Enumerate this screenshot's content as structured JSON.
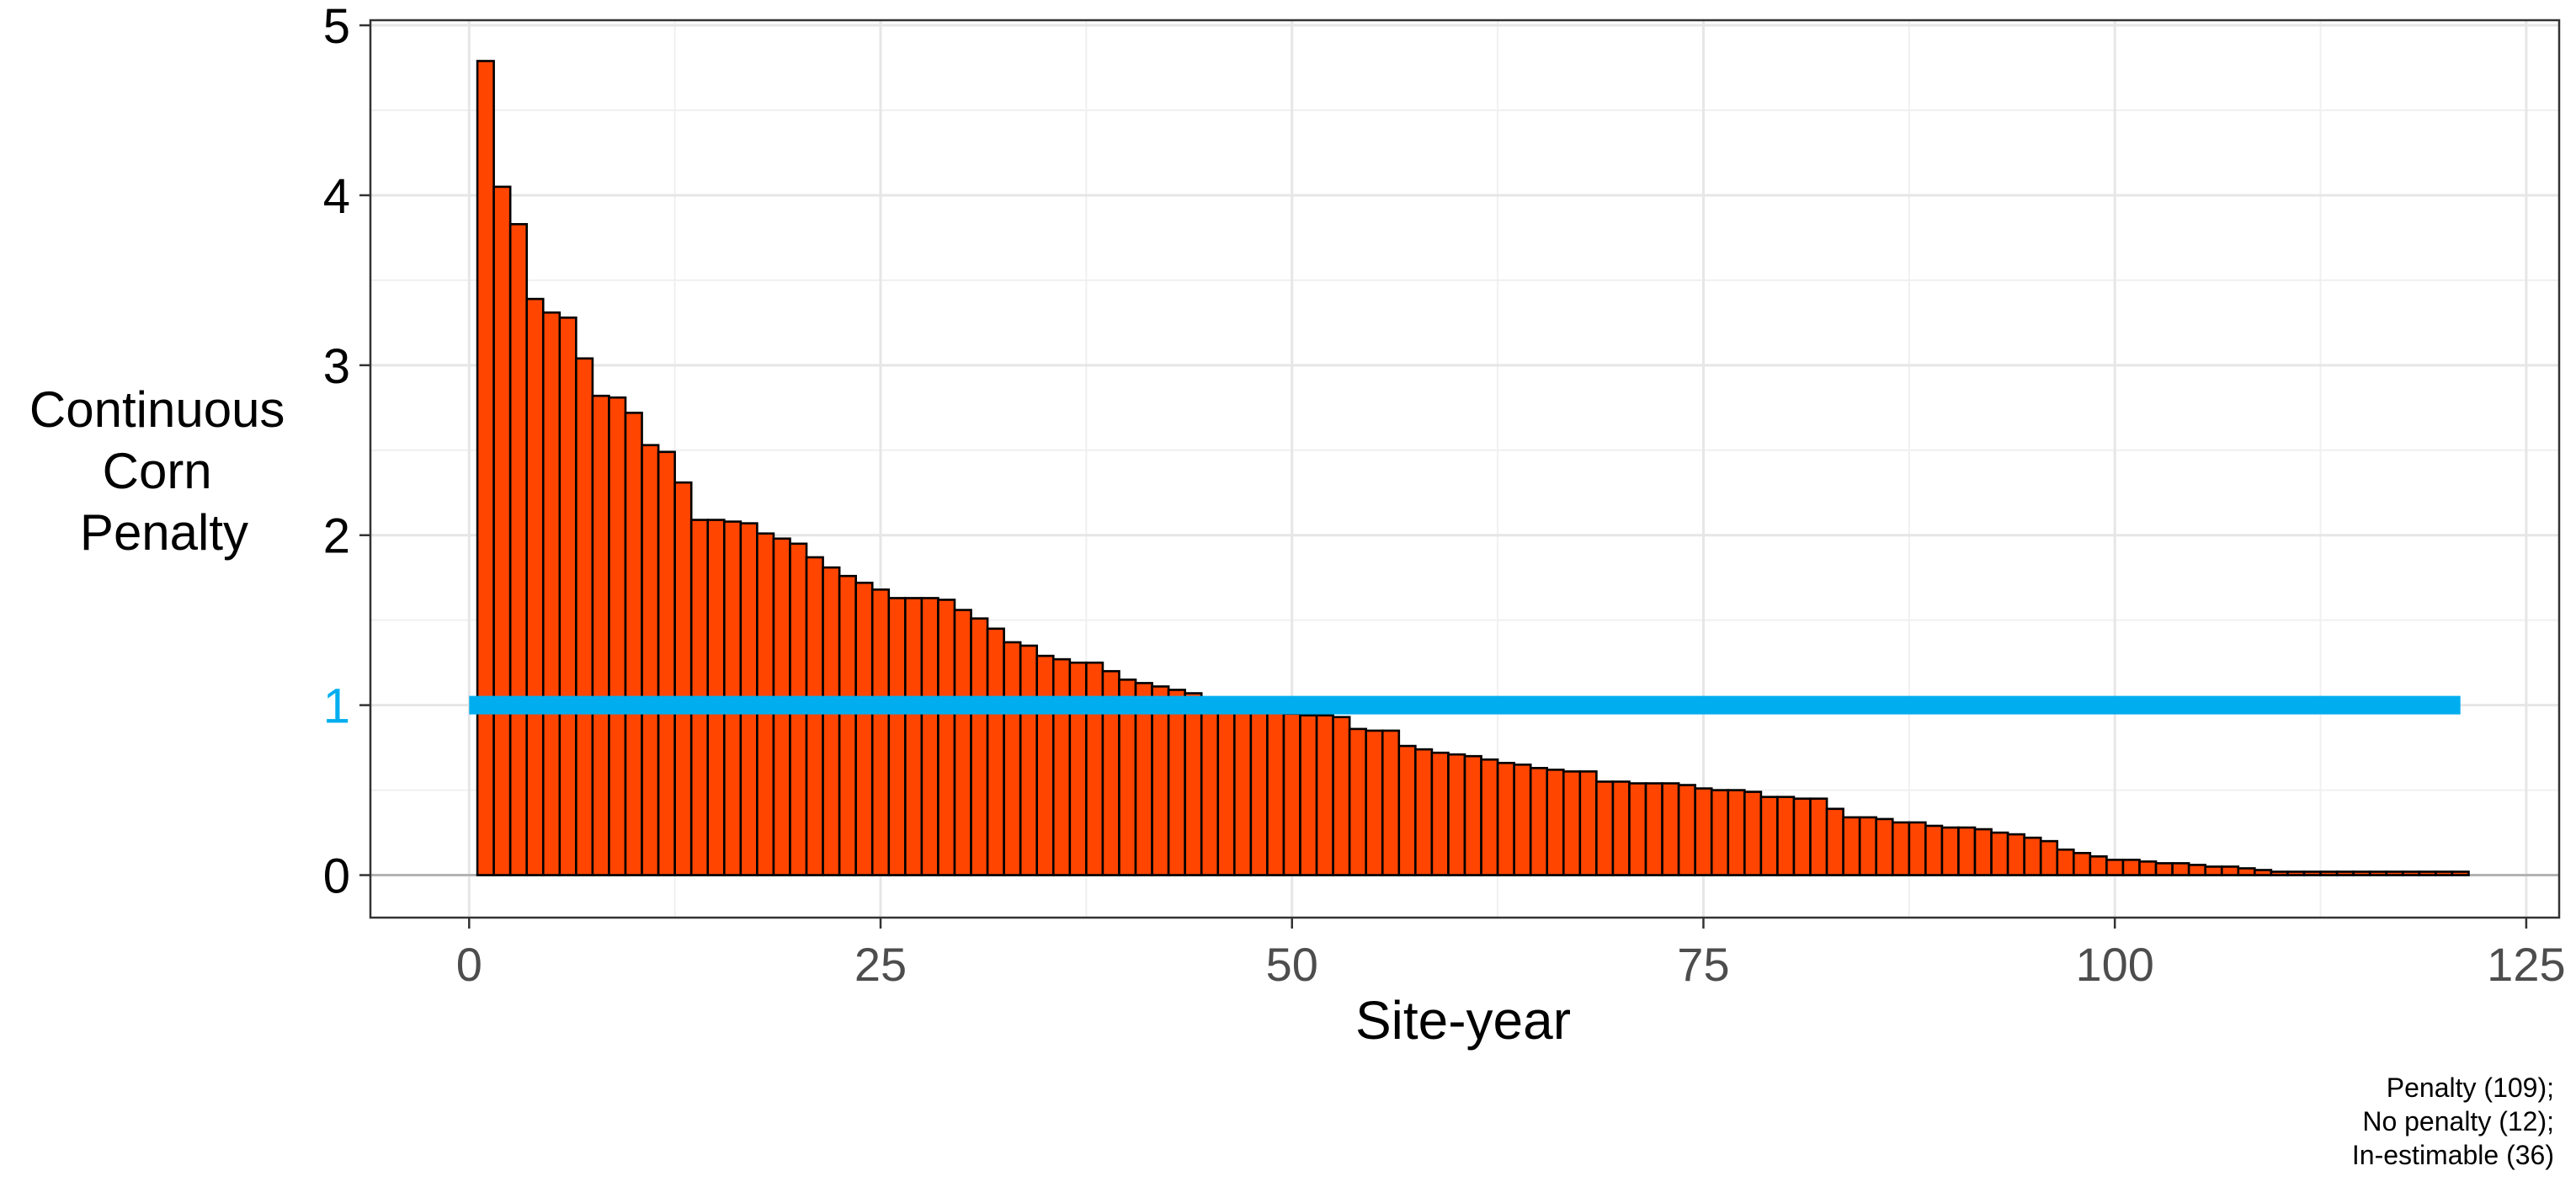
{
  "chart_data": {
    "type": "bar",
    "title": "",
    "xlabel": "Site-year",
    "ylabel": [
      "Continuous",
      "Corn",
      "Penalty"
    ],
    "xlim": [
      -6,
      127
    ],
    "ylim": [
      -0.25,
      5.03
    ],
    "xticks": [
      0,
      25,
      50,
      75,
      100,
      125
    ],
    "yticks": [
      0,
      1,
      2,
      3,
      4,
      5
    ],
    "grid": true,
    "legend": "none",
    "bar_fill": "#FF4500",
    "bar_outline": "#000000",
    "x": [
      1,
      2,
      3,
      4,
      5,
      6,
      7,
      8,
      9,
      10,
      11,
      12,
      13,
      14,
      15,
      16,
      17,
      18,
      19,
      20,
      21,
      22,
      23,
      24,
      25,
      26,
      27,
      28,
      29,
      30,
      31,
      32,
      33,
      34,
      35,
      36,
      37,
      38,
      39,
      40,
      41,
      42,
      43,
      44,
      45,
      46,
      47,
      48,
      49,
      50,
      51,
      52,
      53,
      54,
      55,
      56,
      57,
      58,
      59,
      60,
      61,
      62,
      63,
      64,
      65,
      66,
      67,
      68,
      69,
      70,
      71,
      72,
      73,
      74,
      75,
      76,
      77,
      78,
      79,
      80,
      81,
      82,
      83,
      84,
      85,
      86,
      87,
      88,
      89,
      90,
      91,
      92,
      93,
      94,
      95,
      96,
      97,
      98,
      99,
      100,
      101,
      102,
      103,
      104,
      105,
      106,
      107,
      108,
      109,
      110,
      111,
      112,
      113,
      114,
      115,
      116,
      117,
      118,
      119,
      120,
      121
    ],
    "values": [
      4.79,
      4.05,
      3.83,
      3.39,
      3.31,
      3.28,
      3.04,
      2.82,
      2.81,
      2.72,
      2.53,
      2.49,
      2.31,
      2.09,
      2.09,
      2.08,
      2.07,
      2.01,
      1.98,
      1.95,
      1.87,
      1.81,
      1.76,
      1.72,
      1.68,
      1.63,
      1.63,
      1.63,
      1.62,
      1.56,
      1.51,
      1.45,
      1.37,
      1.35,
      1.29,
      1.27,
      1.25,
      1.25,
      1.2,
      1.15,
      1.13,
      1.11,
      1.09,
      1.07,
      1.03,
      1.01,
      0.98,
      0.97,
      0.96,
      0.95,
      0.94,
      0.94,
      0.93,
      0.86,
      0.85,
      0.85,
      0.76,
      0.74,
      0.72,
      0.71,
      0.7,
      0.68,
      0.66,
      0.65,
      0.63,
      0.62,
      0.61,
      0.61,
      0.55,
      0.55,
      0.54,
      0.54,
      0.54,
      0.53,
      0.51,
      0.5,
      0.5,
      0.49,
      0.46,
      0.46,
      0.45,
      0.45,
      0.39,
      0.34,
      0.34,
      0.33,
      0.31,
      0.31,
      0.29,
      0.28,
      0.28,
      0.27,
      0.25,
      0.24,
      0.22,
      0.2,
      0.15,
      0.13,
      0.11,
      0.09,
      0.09,
      0.08,
      0.07,
      0.07,
      0.06,
      0.05,
      0.05,
      0.04,
      0.03,
      0.02,
      0.02,
      0.02,
      0.02,
      0.02,
      0.02,
      0.02,
      0.02,
      0.02,
      0.02,
      0.02,
      0.02
    ],
    "reference_line": {
      "y": 1,
      "x_range": [
        0,
        121
      ],
      "color": "#00AEEF",
      "label": "1"
    },
    "zero_line": {
      "y": 0,
      "color": "#B3B3B3"
    },
    "annotation": [
      "Penalty (109);",
      "No penalty (12);",
      "In-estimable (36)"
    ]
  }
}
